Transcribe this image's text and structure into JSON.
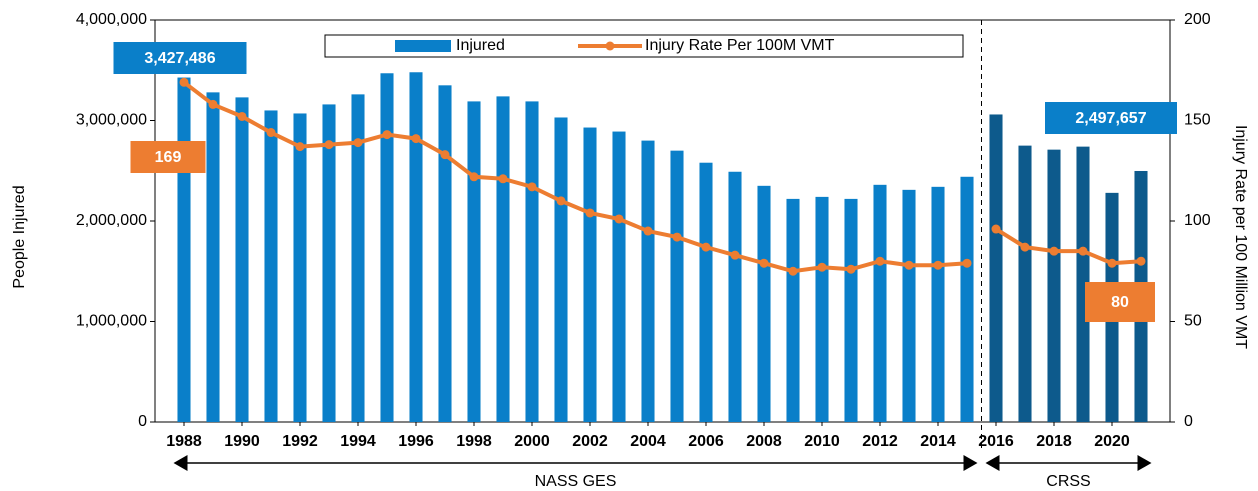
{
  "chart_data": {
    "type": "bar-line",
    "y_label": "People Injured",
    "y2_label": "Injury Rate per 100 Million VMT",
    "x": [
      1988,
      1989,
      1990,
      1991,
      1992,
      1993,
      1994,
      1995,
      1996,
      1997,
      1998,
      1999,
      2000,
      2001,
      2002,
      2003,
      2004,
      2005,
      2006,
      2007,
      2008,
      2009,
      2010,
      2011,
      2012,
      2013,
      2014,
      2015,
      2016,
      2017,
      2018,
      2019,
      2020,
      2021
    ],
    "xlim": [
      1987,
      2022
    ],
    "xticks": [
      1988,
      1990,
      1992,
      1994,
      1996,
      1998,
      2000,
      2002,
      2004,
      2006,
      2008,
      2010,
      2012,
      2014,
      2016,
      2018,
      2020
    ],
    "ylim": [
      0,
      4000000
    ],
    "yticks": [
      0,
      {
        "value": 1000000,
        "label": "1,000,000"
      },
      {
        "value": 2000000,
        "label": "2,000,000"
      },
      {
        "value": 3000000,
        "label": "3,000,000"
      },
      {
        "value": 4000000,
        "label": "4,000,000"
      }
    ],
    "y2lim": [
      0,
      200
    ],
    "y2ticks": [
      0,
      50,
      100,
      150,
      200
    ],
    "series": [
      {
        "name": "Injured",
        "type": "bar",
        "color": "#0a7fc9",
        "values": [
          3427486,
          3280000,
          3230000,
          3100000,
          3070000,
          3160000,
          3260000,
          3470000,
          3480000,
          3350000,
          3190000,
          3240000,
          3190000,
          3030000,
          2930000,
          2890000,
          2800000,
          2700000,
          2580000,
          2490000,
          2350000,
          2220000,
          2240000,
          2220000,
          2360000,
          2310000,
          2340000,
          2440000,
          3060000,
          2750000,
          2710000,
          2740000,
          2280000,
          2497657
        ],
        "value_labels": [
          "3,427,486",
          null,
          null,
          null,
          null,
          null,
          null,
          null,
          null,
          null,
          null,
          null,
          null,
          null,
          null,
          null,
          null,
          null,
          null,
          null,
          null,
          null,
          null,
          null,
          null,
          null,
          null,
          null,
          null,
          null,
          null,
          null,
          null,
          "2,497,657"
        ]
      },
      {
        "name": "Injury Rate Per 100M VMT",
        "type": "line",
        "axis": "y2",
        "color": "#ed7d31",
        "values": [
          169,
          158,
          152,
          144,
          137,
          138,
          139,
          143,
          141,
          133,
          122,
          121,
          117,
          110,
          104,
          101,
          95,
          92,
          87,
          83,
          79,
          75,
          77,
          76,
          80,
          78,
          78,
          79,
          96,
          87,
          85,
          85,
          79,
          80
        ],
        "value_labels": [
          "169",
          null,
          null,
          null,
          null,
          null,
          null,
          null,
          null,
          null,
          null,
          null,
          null,
          null,
          null,
          null,
          null,
          null,
          null,
          null,
          null,
          null,
          null,
          null,
          null,
          null,
          null,
          null,
          null,
          null,
          null,
          null,
          null,
          "80"
        ]
      }
    ],
    "eras": [
      {
        "label": "NASS GES",
        "first": 1988,
        "last": 2015,
        "color": "#0a7fc9"
      },
      {
        "label": "CRSS",
        "first": 2016,
        "last": 2021,
        "color": "#0d5a8c"
      }
    ]
  }
}
